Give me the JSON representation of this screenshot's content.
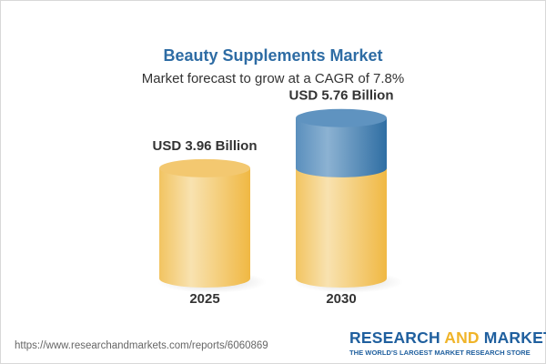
{
  "title": "Beauty Supplements Market",
  "subtitle": "Market forecast to grow at a CAGR of 7.8%",
  "url": "https://www.researchandmarkets.com/reports/6060869",
  "logo": {
    "part1": "RESEARCH ",
    "part2": "AND",
    "part3": " MARKETS",
    "tagline": "THE WORLD'S LARGEST MARKET RESEARCH STORE"
  },
  "colors": {
    "title": "#2e6ca4",
    "base": "#f3c35f",
    "growth": "#3f79ab"
  },
  "chart_data": {
    "type": "bar",
    "style": "3d-cylinder",
    "categories": [
      "2025",
      "2030"
    ],
    "values": [
      3.96,
      5.76
    ],
    "data_labels": [
      "USD 3.96 Billion",
      "USD 5.76 Billion"
    ],
    "unit": "USD Billion",
    "cagr": "7.8%",
    "grid": false
  }
}
